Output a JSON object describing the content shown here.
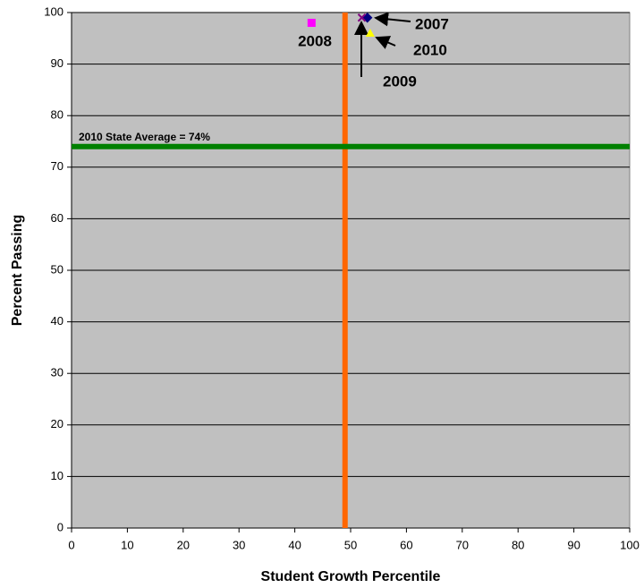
{
  "chart_data": {
    "type": "scatter",
    "x_label": "Student Growth Percentile",
    "y_label": "Percent Passing",
    "xlim": [
      0,
      100
    ],
    "ylim": [
      0,
      100
    ],
    "xticks": [
      0,
      10,
      20,
      30,
      40,
      50,
      60,
      70,
      80,
      90,
      100
    ],
    "yticks": [
      0,
      10,
      20,
      30,
      40,
      50,
      60,
      70,
      80,
      90,
      100
    ],
    "grid": true,
    "background": "#c0c0c0",
    "series": [
      {
        "name": "2007",
        "color": "#000080",
        "marker": "diamond",
        "x": [
          53
        ],
        "values": [
          99
        ]
      },
      {
        "name": "2008",
        "color": "#ff00ff",
        "marker": "square",
        "x": [
          43
        ],
        "values": [
          98
        ]
      },
      {
        "name": "2009",
        "color": "#800080",
        "marker": "x",
        "x": [
          52
        ],
        "values": [
          99
        ]
      },
      {
        "name": "2010",
        "color": "#ffff00",
        "marker": "triangle",
        "x": [
          53.5
        ],
        "values": [
          96
        ]
      }
    ],
    "reference_lines": [
      {
        "axis": "x",
        "value": 49,
        "color": "#ff6600"
      },
      {
        "axis": "y",
        "value": 74,
        "color": "#008000",
        "label": "2010 State Average = 74%"
      }
    ]
  }
}
